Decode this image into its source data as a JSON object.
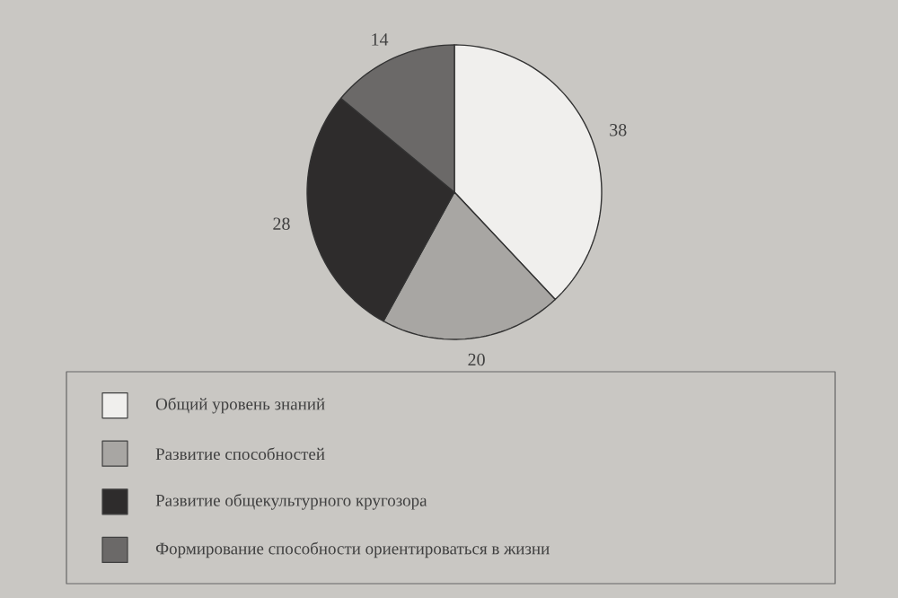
{
  "chart_data": {
    "type": "pie",
    "categories": [
      "Общий уровень знаний",
      "Развитие способностей",
      "Развитие общекультурного кругозора",
      "Формирование способности ориентироваться в жизни"
    ],
    "values": [
      38,
      20,
      28,
      14
    ],
    "colors": [
      "#f0efed",
      "#a8a6a3",
      "#2e2c2c",
      "#6b6968"
    ],
    "data_labels": true,
    "legend": "bottom"
  }
}
